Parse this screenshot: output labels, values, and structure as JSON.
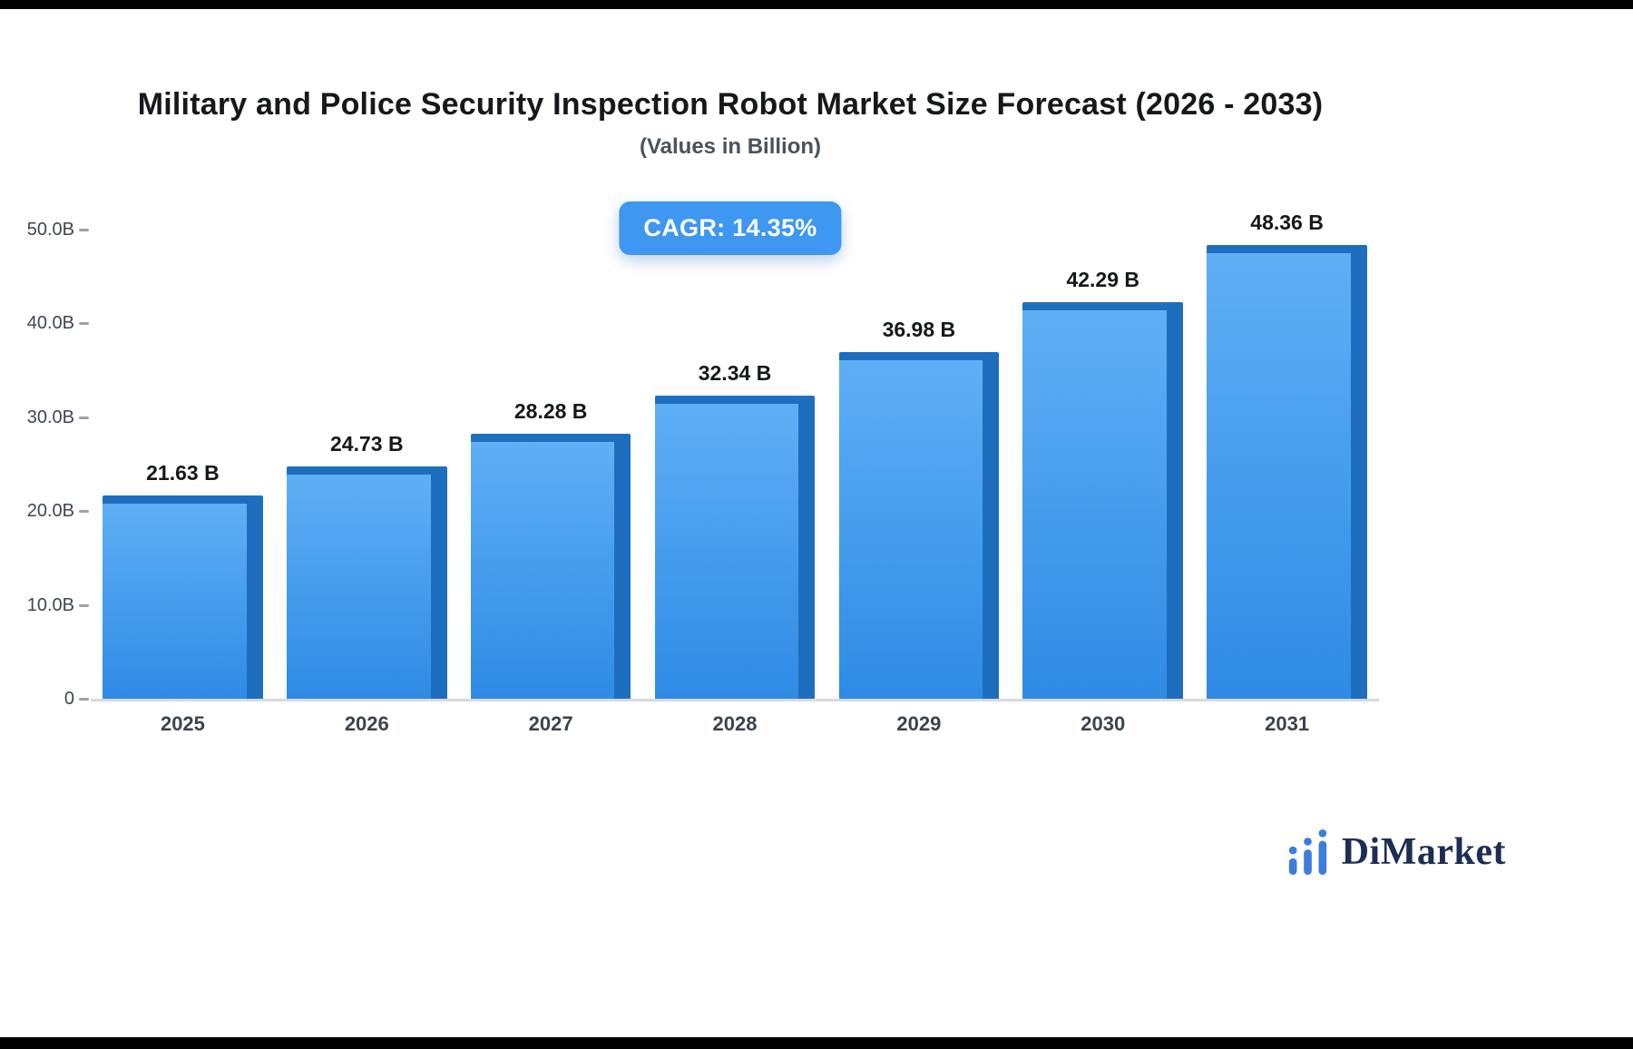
{
  "chart_data": {
    "type": "bar",
    "title": "Military and Police Security Inspection Robot Market Size Forecast (2026 - 2033)",
    "subtitle": "(Values in Billion)",
    "badge_label": "CAGR: 14.35%",
    "categories": [
      "2025",
      "2026",
      "2027",
      "2028",
      "2029",
      "2030",
      "2031"
    ],
    "values": [
      21.63,
      24.73,
      28.28,
      32.34,
      36.98,
      42.29,
      48.36
    ],
    "value_labels": [
      "21.63 B",
      "24.73 B",
      "28.28 B",
      "32.34 B",
      "36.98 B",
      "42.29 B",
      "48.36 B"
    ],
    "unit": "Billion",
    "xlabel": "",
    "ylabel": "",
    "ylim": [
      0,
      50
    ],
    "yticks": [
      "50.0B",
      "40.0B",
      "30.0B",
      "20.0B",
      "10.0B",
      "0"
    ],
    "grid": false,
    "legend": false,
    "colors": {
      "bar_main_top": "#5FAFF5",
      "bar_main_bottom": "#2E8BE4",
      "bar_side": "#1D6FBE",
      "badge_bg": "#3E97F0"
    }
  },
  "footer": {
    "brand_name": "DiMarket"
  }
}
